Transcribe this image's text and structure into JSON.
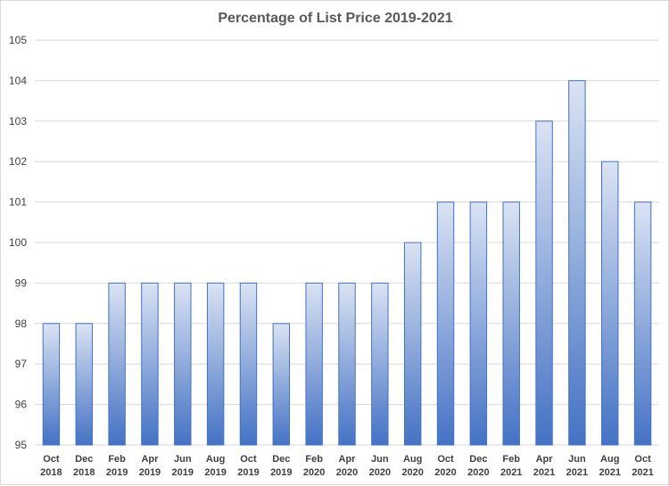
{
  "chart_data": {
    "type": "bar",
    "title": "Percentage of List Price 2019-2021",
    "xlabel": "",
    "ylabel": "",
    "ylim": [
      95,
      105
    ],
    "yticks": [
      95,
      96,
      97,
      98,
      99,
      100,
      101,
      102,
      103,
      104,
      105
    ],
    "grid": true,
    "legend": "none",
    "categories": [
      [
        "Oct",
        "2018"
      ],
      [
        "Dec",
        "2018"
      ],
      [
        "Feb",
        "2019"
      ],
      [
        "Apr",
        "2019"
      ],
      [
        "Jun",
        "2019"
      ],
      [
        "Aug",
        "2019"
      ],
      [
        "Oct",
        "2019"
      ],
      [
        "Dec",
        "2019"
      ],
      [
        "Feb",
        "2020"
      ],
      [
        "Apr",
        "2020"
      ],
      [
        "Jun",
        "2020"
      ],
      [
        "Aug",
        "2020"
      ],
      [
        "Oct",
        "2020"
      ],
      [
        "Dec",
        "2020"
      ],
      [
        "Feb",
        "2021"
      ],
      [
        "Apr",
        "2021"
      ],
      [
        "Jun",
        "2021"
      ],
      [
        "Aug",
        "2021"
      ],
      [
        "Oct",
        "2021"
      ]
    ],
    "values": [
      98,
      98,
      99,
      99,
      99,
      99,
      99,
      98,
      99,
      99,
      99,
      100,
      101,
      101,
      101,
      103,
      104,
      102,
      101
    ],
    "colors": {
      "bar_top": "#dae3f3",
      "bar_bottom": "#4472c4",
      "bar_border": "#4472c4"
    }
  }
}
